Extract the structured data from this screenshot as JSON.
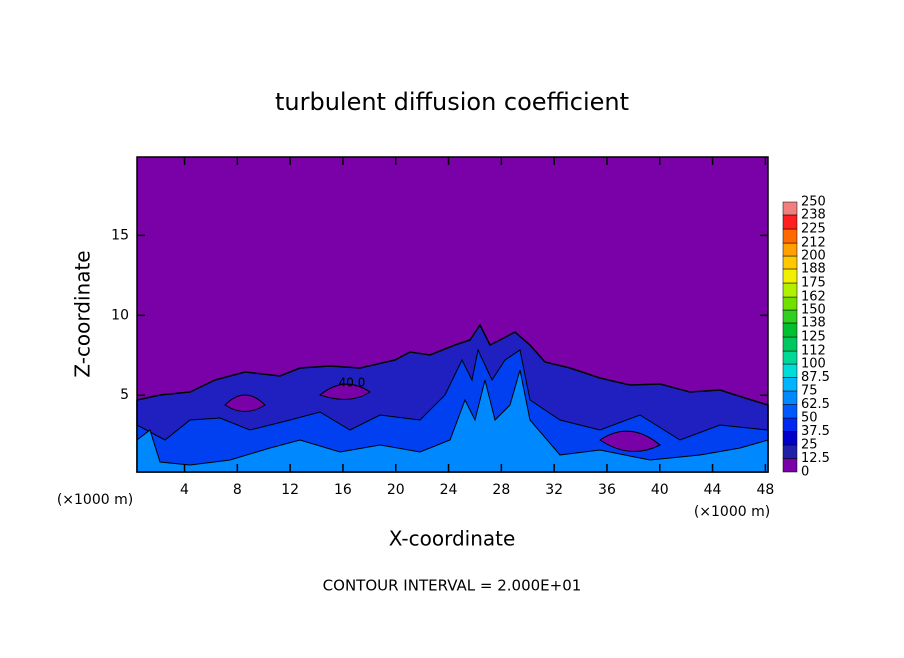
{
  "chart_data": {
    "type": "contour",
    "title": "turbulent diffusion coefficient",
    "x_label": "X-coordinate",
    "y_label": "Z-coordinate",
    "unit_labels": [
      "(×1000 m)",
      "(×1000 m)"
    ],
    "footer": "CONTOUR INTERVAL = 2.000E+01",
    "annotations": [
      "40.0"
    ],
    "xlim": [
      0.4,
      48.2
    ],
    "ylim": [
      0.2,
      19.9
    ],
    "xticks": [
      4,
      8,
      12,
      16,
      20,
      24,
      28,
      32,
      36,
      40,
      44,
      48
    ],
    "yticks": [
      5,
      10,
      15
    ],
    "colorbar": {
      "levels": [
        0,
        12.5,
        25,
        37.5,
        50,
        62.5,
        75,
        87.5,
        100,
        112,
        125,
        138,
        150,
        162,
        175,
        188,
        200,
        212,
        225,
        238,
        250
      ],
      "colors": [
        "#7a00a8",
        "#2020a8",
        "#0000c8",
        "#0028f0",
        "#0058ff",
        "#0088ff",
        "#00b4ff",
        "#00dcd8",
        "#00d898",
        "#00c860",
        "#00c030",
        "#30d020",
        "#70e000",
        "#b0f000",
        "#f0f000",
        "#ffc800",
        "#ffa000",
        "#ff6a00",
        "#ff2020",
        "#f08080"
      ]
    }
  }
}
